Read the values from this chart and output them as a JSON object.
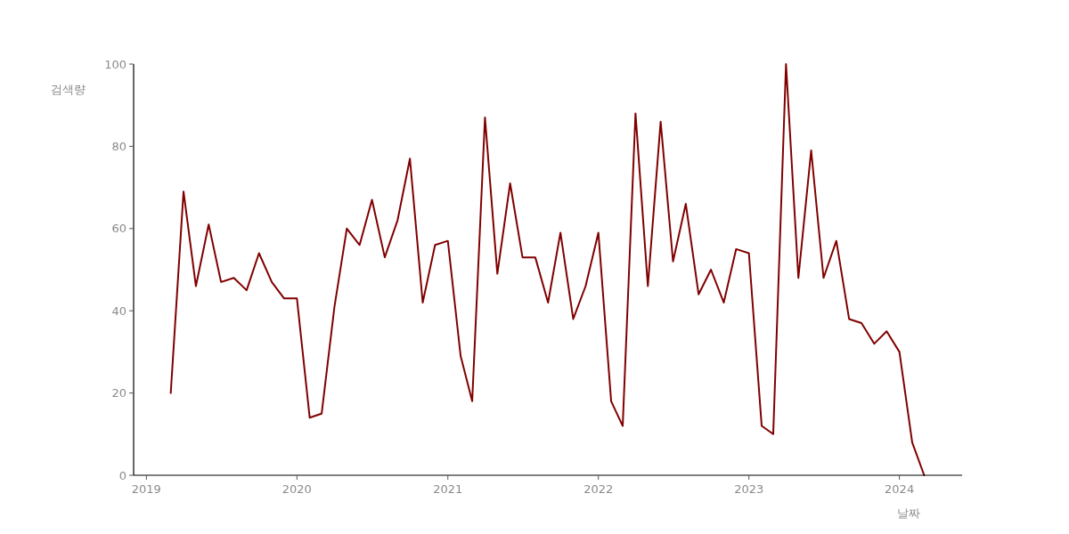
{
  "chart_data": {
    "type": "line",
    "xlabel": "날짜",
    "ylabel": "검색량",
    "x": [
      "2019-03",
      "2019-04",
      "2019-05",
      "2019-06",
      "2019-07",
      "2019-08",
      "2019-09",
      "2019-10",
      "2019-11",
      "2019-12",
      "2020-01",
      "2020-02",
      "2020-03",
      "2020-04",
      "2020-05",
      "2020-06",
      "2020-07",
      "2020-08",
      "2020-09",
      "2020-10",
      "2020-11",
      "2020-12",
      "2021-01",
      "2021-02",
      "2021-03",
      "2021-04",
      "2021-05",
      "2021-06",
      "2021-07",
      "2021-08",
      "2021-09",
      "2021-10",
      "2021-11",
      "2021-12",
      "2022-01",
      "2022-02",
      "2022-03",
      "2022-04",
      "2022-05",
      "2022-06",
      "2022-07",
      "2022-08",
      "2022-09",
      "2022-10",
      "2022-11",
      "2022-12",
      "2023-01",
      "2023-02",
      "2023-03",
      "2023-04",
      "2023-05",
      "2023-06",
      "2023-07",
      "2023-08",
      "2023-09",
      "2023-10",
      "2023-11",
      "2023-12",
      "2024-01",
      "2024-02",
      "2024-03"
    ],
    "values": [
      20,
      69,
      46,
      61,
      47,
      48,
      45,
      54,
      47,
      43,
      43,
      14,
      15,
      41,
      60,
      56,
      67,
      53,
      62,
      77,
      42,
      56,
      57,
      29,
      18,
      87,
      49,
      71,
      53,
      53,
      42,
      59,
      38,
      46,
      59,
      18,
      12,
      88,
      46,
      86,
      52,
      66,
      44,
      50,
      42,
      55,
      54,
      12,
      10,
      100,
      48,
      79,
      48,
      57,
      38,
      37,
      32,
      35,
      30,
      8,
      0
    ],
    "color": "#800000",
    "xlim": [
      "2018-12-01",
      "2024-06-01"
    ],
    "xticks": [
      "2019",
      "2020",
      "2021",
      "2022",
      "2023",
      "2024"
    ],
    "ylim": [
      0,
      100
    ],
    "yticks": [
      0,
      20,
      40,
      60,
      80,
      100
    ],
    "grid": false
  }
}
